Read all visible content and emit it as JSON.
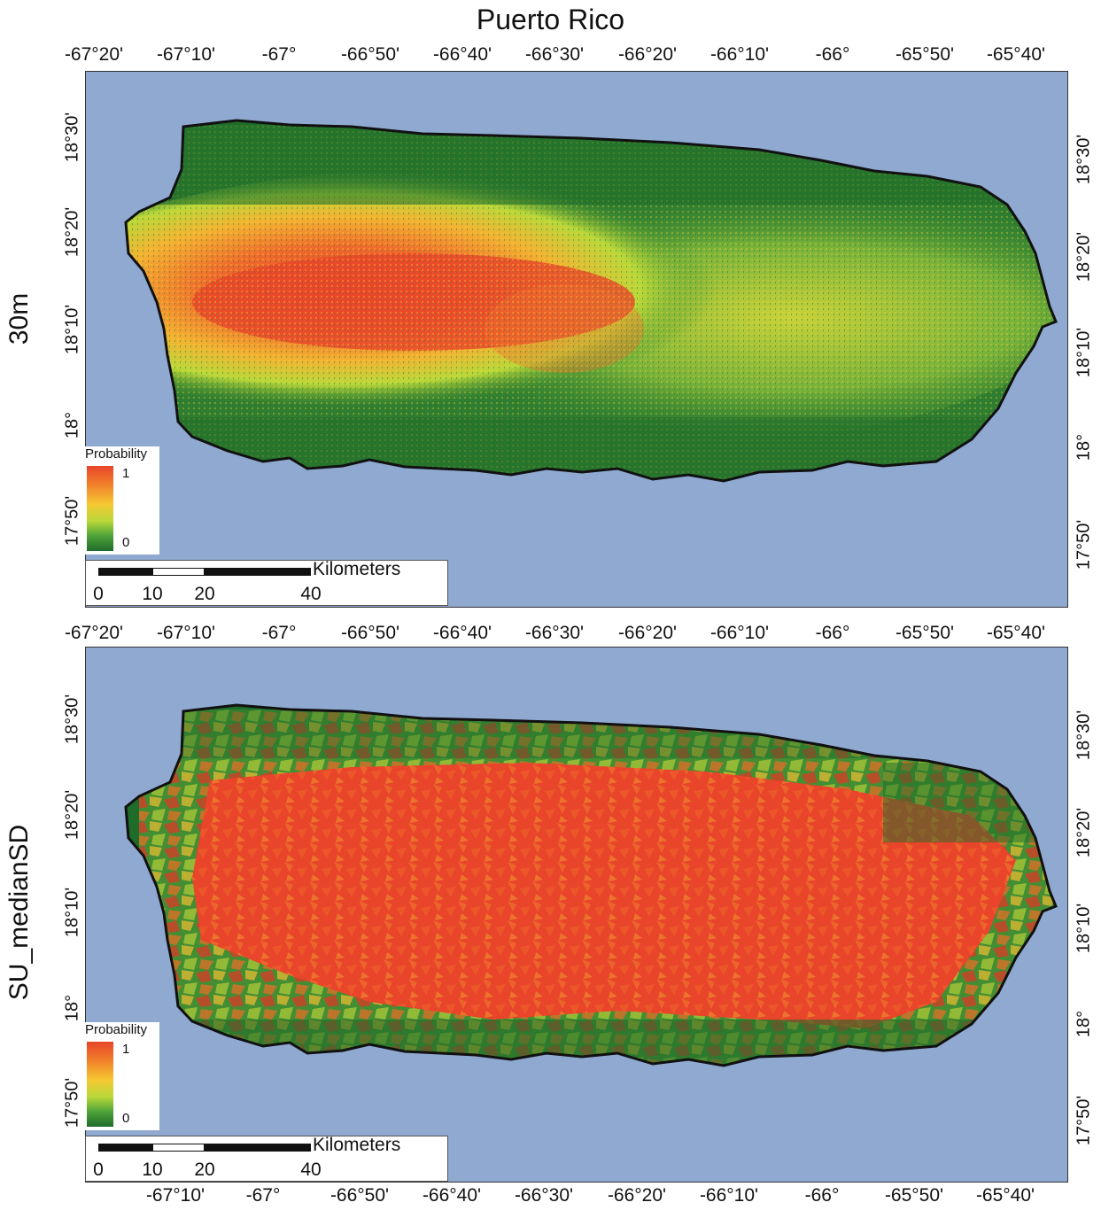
{
  "title": "Puerto Rico",
  "lon_labels": [
    "-67°20'",
    "-67°10'",
    "-67°",
    "-66°50'",
    "-66°40'",
    "-66°30'",
    "-66°20'",
    "-66°10'",
    "-66°",
    "-65°50'",
    "-65°40'"
  ],
  "lon_labels_bottom": [
    "-67°10'",
    "-67°",
    "-66°50'",
    "-66°40'",
    "-66°30'",
    "-66°20'",
    "-66°10'",
    "-66°",
    "-65°50'",
    "-65°40'"
  ],
  "lat_labels": [
    "18°30'",
    "18°20'",
    "18°10'",
    "18°",
    "17°50'"
  ],
  "panels": [
    {
      "label": "30m",
      "style": "continuous"
    },
    {
      "label": "SU_medianSD",
      "style": "slope-units"
    }
  ],
  "legend": {
    "title": "Probability",
    "high": "1",
    "low": "0"
  },
  "scalebar": {
    "units": "Kilometers",
    "ticks": [
      "0",
      "10",
      "20",
      "40"
    ]
  },
  "colors": {
    "water": "#8fa9d1",
    "low": "#1f6b2a",
    "mid": "#f6c832",
    "high": "#e8452a"
  }
}
